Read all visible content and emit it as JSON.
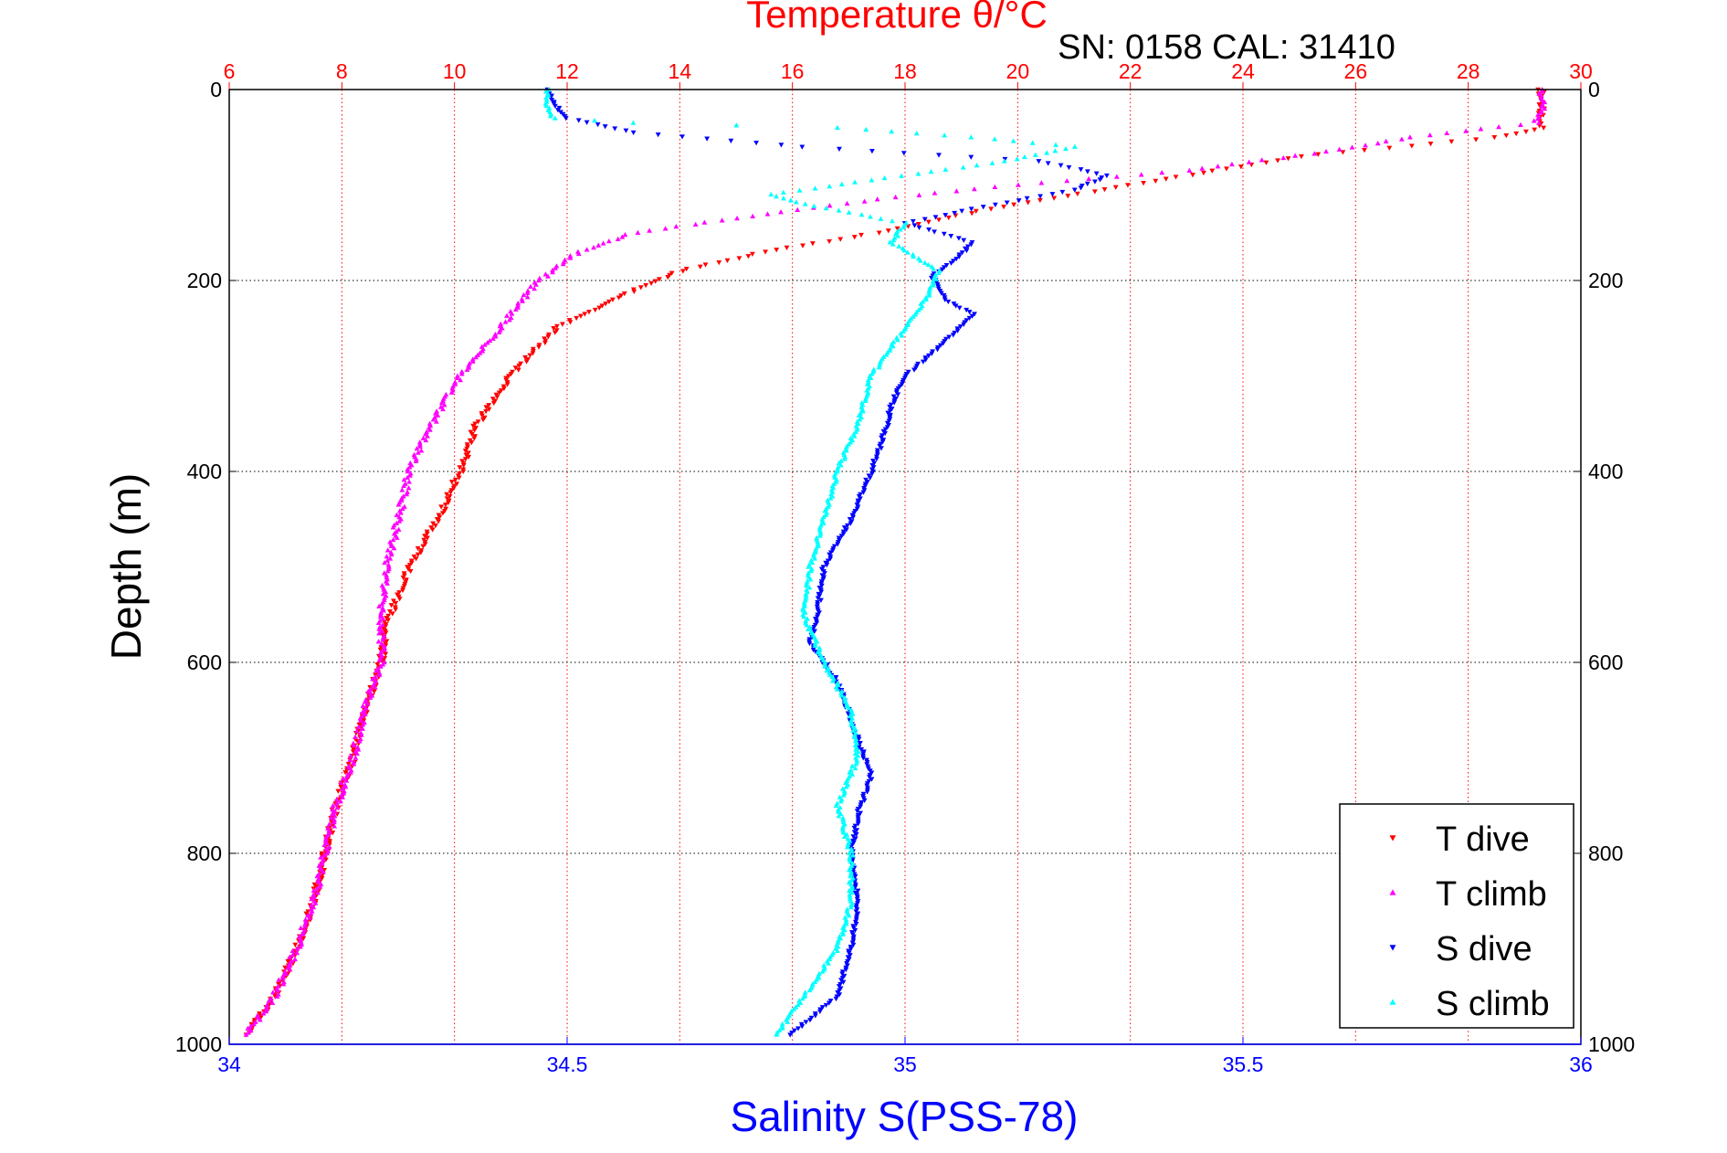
{
  "chart_data": {
    "type": "scatter",
    "title": "Temperature θ/°C",
    "subtitle": "SN: 0158  CAL: 31410",
    "ylabel": "Depth (m)",
    "xlabel": "Salinity S(PSS-78)",
    "ylim": [
      0,
      1000
    ],
    "y_reversed": true,
    "temperature_axis": {
      "label": "Temperature θ/°C",
      "range": [
        6,
        30
      ],
      "ticks": [
        6,
        8,
        10,
        12,
        14,
        16,
        18,
        20,
        22,
        24,
        26,
        28,
        30
      ],
      "color": "#ff0000",
      "grid": true,
      "position": "top"
    },
    "salinity_axis": {
      "label": "Salinity S(PSS-78)",
      "range": [
        34,
        36
      ],
      "ticks": [
        34,
        34.5,
        35,
        35.5,
        36
      ],
      "color": "#0000ff",
      "position": "bottom"
    },
    "depth_ticks": [
      0,
      200,
      400,
      600,
      800,
      1000
    ],
    "grid": true,
    "legend": {
      "position": "bottom-right",
      "entries": [
        "T dive",
        "T climb",
        "S dive",
        "S climb"
      ]
    },
    "series": [
      {
        "name": "T dive",
        "axis": "temperature",
        "color": "#ff0000",
        "marker": "triangle-down",
        "points": [
          [
            29.3,
            0
          ],
          [
            29.3,
            20
          ],
          [
            29.3,
            40
          ],
          [
            28.5,
            50
          ],
          [
            25,
            70
          ],
          [
            22,
            100
          ],
          [
            19.5,
            125
          ],
          [
            17.5,
            150
          ],
          [
            15.5,
            170
          ],
          [
            14,
            190
          ],
          [
            12.8,
            220
          ],
          [
            11.8,
            250
          ],
          [
            11,
            300
          ],
          [
            10.4,
            350
          ],
          [
            10.1,
            400
          ],
          [
            9.7,
            450
          ],
          [
            9.2,
            500
          ],
          [
            8.8,
            560
          ],
          [
            8.7,
            600
          ],
          [
            8.4,
            650
          ],
          [
            8.2,
            700
          ],
          [
            7.9,
            750
          ],
          [
            7.7,
            800
          ],
          [
            7.5,
            850
          ],
          [
            7.2,
            900
          ],
          [
            6.8,
            950
          ],
          [
            6.3,
            990
          ]
        ]
      },
      {
        "name": "T climb",
        "axis": "temperature",
        "color": "#ff00ff",
        "marker": "triangle-up",
        "points": [
          [
            29.3,
            0
          ],
          [
            29.3,
            20
          ],
          [
            29.2,
            35
          ],
          [
            27,
            50
          ],
          [
            25.5,
            65
          ],
          [
            23,
            85
          ],
          [
            20,
            100
          ],
          [
            17.5,
            115
          ],
          [
            15,
            135
          ],
          [
            13.2,
            150
          ],
          [
            12.2,
            170
          ],
          [
            11.5,
            200
          ],
          [
            10.8,
            250
          ],
          [
            10.1,
            300
          ],
          [
            9.6,
            350
          ],
          [
            9.2,
            400
          ],
          [
            9,
            450
          ],
          [
            8.8,
            500
          ],
          [
            8.7,
            550
          ],
          [
            8.7,
            600
          ],
          [
            8.4,
            650
          ],
          [
            8.2,
            700
          ],
          [
            7.9,
            750
          ],
          [
            7.7,
            800
          ],
          [
            7.5,
            850
          ],
          [
            7.2,
            900
          ],
          [
            6.8,
            950
          ],
          [
            6.3,
            990
          ]
        ]
      },
      {
        "name": "S dive",
        "axis": "salinity",
        "color": "#0000ff",
        "marker": "triangle-down",
        "points": [
          [
            34.47,
            0
          ],
          [
            34.48,
            15
          ],
          [
            34.5,
            30
          ],
          [
            34.6,
            45
          ],
          [
            34.85,
            60
          ],
          [
            35.2,
            75
          ],
          [
            35.3,
            90
          ],
          [
            35.25,
            105
          ],
          [
            35.1,
            125
          ],
          [
            35.0,
            140
          ],
          [
            35.1,
            160
          ],
          [
            35.08,
            175
          ],
          [
            35.04,
            195
          ],
          [
            35.06,
            220
          ],
          [
            35.1,
            235
          ],
          [
            35.05,
            270
          ],
          [
            35.0,
            300
          ],
          [
            34.98,
            330
          ],
          [
            34.97,
            360
          ],
          [
            34.95,
            400
          ],
          [
            34.92,
            450
          ],
          [
            34.88,
            500
          ],
          [
            34.87,
            550
          ],
          [
            34.86,
            580
          ],
          [
            34.9,
            620
          ],
          [
            34.93,
            680
          ],
          [
            34.95,
            720
          ],
          [
            34.93,
            760
          ],
          [
            34.92,
            800
          ],
          [
            34.93,
            850
          ],
          [
            34.92,
            900
          ],
          [
            34.9,
            950
          ],
          [
            34.83,
            990
          ]
        ]
      },
      {
        "name": "S climb",
        "axis": "salinity",
        "color": "#00ffff",
        "marker": "triangle-up",
        "points": [
          [
            34.47,
            0
          ],
          [
            34.47,
            15
          ],
          [
            34.48,
            30
          ],
          [
            34.6,
            35
          ],
          [
            34.9,
            40
          ],
          [
            35.1,
            50
          ],
          [
            35.25,
            60
          ],
          [
            35.15,
            75
          ],
          [
            34.95,
            95
          ],
          [
            34.8,
            110
          ],
          [
            34.85,
            120
          ],
          [
            35.0,
            140
          ],
          [
            34.98,
            160
          ],
          [
            35.05,
            190
          ],
          [
            35.03,
            220
          ],
          [
            34.99,
            260
          ],
          [
            34.95,
            300
          ],
          [
            34.93,
            350
          ],
          [
            34.9,
            400
          ],
          [
            34.88,
            450
          ],
          [
            34.86,
            500
          ],
          [
            34.85,
            550
          ],
          [
            34.88,
            600
          ],
          [
            34.92,
            650
          ],
          [
            34.93,
            700
          ],
          [
            34.9,
            750
          ],
          [
            34.92,
            800
          ],
          [
            34.92,
            850
          ],
          [
            34.9,
            900
          ],
          [
            34.85,
            950
          ],
          [
            34.81,
            990
          ]
        ]
      }
    ]
  }
}
